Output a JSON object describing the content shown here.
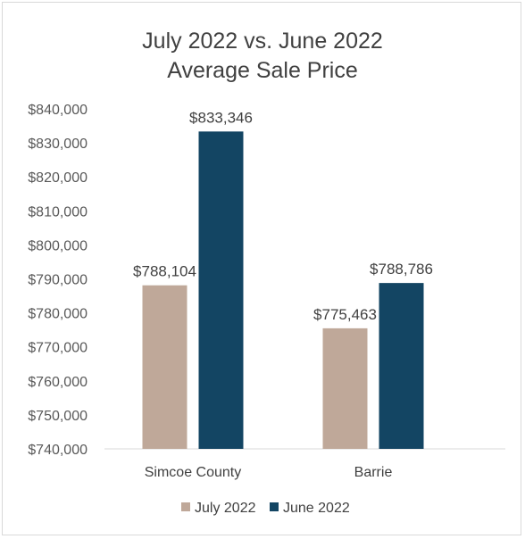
{
  "chart_data": {
    "type": "bar",
    "title_lines": [
      "July 2022 vs. June 2022",
      "Average Sale Price"
    ],
    "categories": [
      "Simcoe County",
      "Barrie"
    ],
    "series": [
      {
        "name": "July 2022",
        "values": [
          788104,
          775463
        ],
        "labels": [
          "$788,104",
          "$775,463"
        ],
        "color": "#bfa899"
      },
      {
        "name": "June 2022",
        "values": [
          833346,
          788786
        ],
        "labels": [
          "$833,346",
          "$788,786"
        ],
        "color": "#134563"
      }
    ],
    "ylim": [
      740000,
      840000
    ],
    "yticks": [
      "$740,000",
      "$750,000",
      "$760,000",
      "$770,000",
      "$780,000",
      "$790,000",
      "$800,000",
      "$810,000",
      "$820,000",
      "$830,000",
      "$840,000"
    ],
    "grid": false,
    "legend_position": "bottom"
  }
}
